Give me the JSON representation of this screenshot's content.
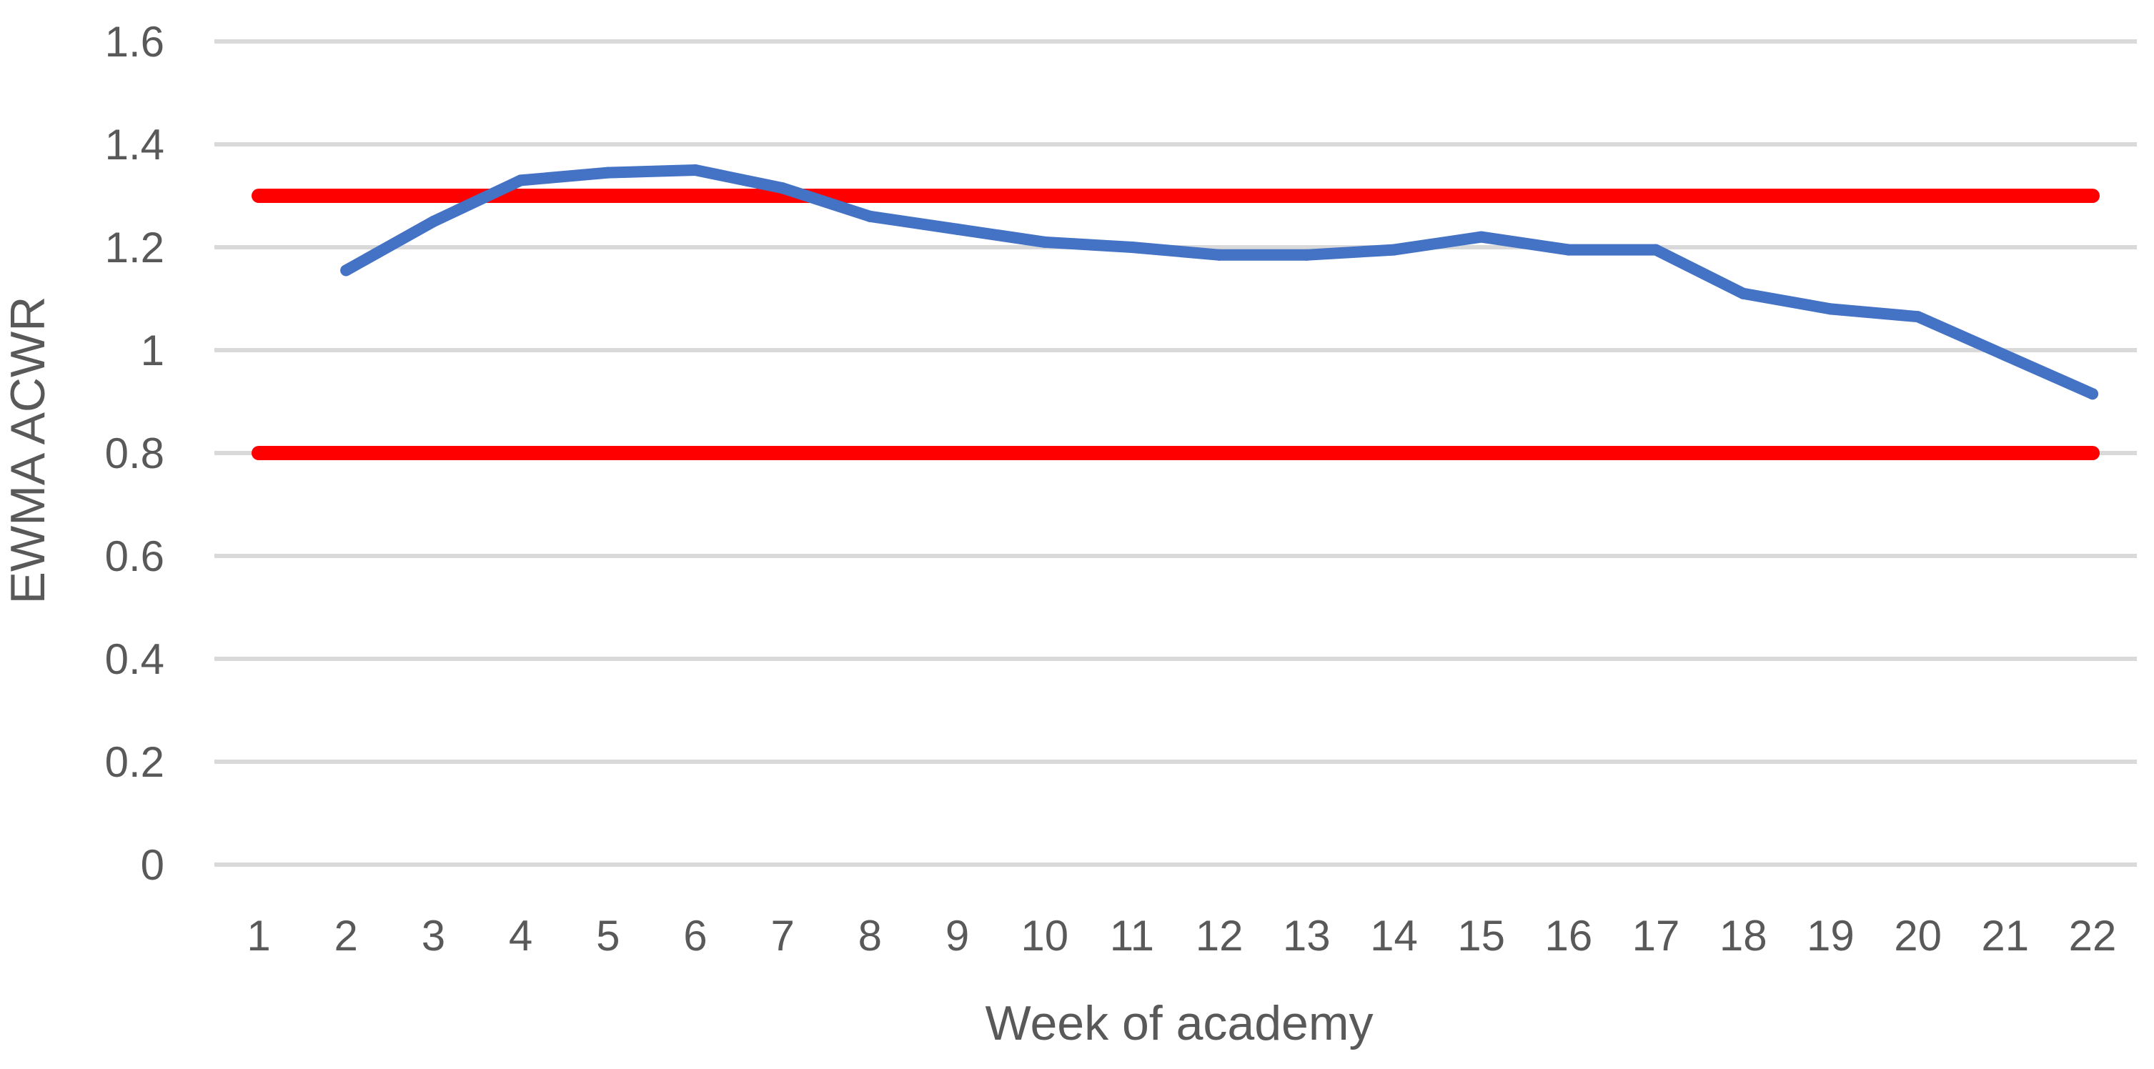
{
  "chart_data": {
    "type": "line",
    "title": "",
    "xlabel": "Week of academy",
    "ylabel": "EWMA ACWR",
    "categories": [
      "1",
      "2",
      "3",
      "4",
      "5",
      "6",
      "7",
      "8",
      "9",
      "10",
      "11",
      "12",
      "13",
      "14",
      "15",
      "16",
      "17",
      "18",
      "19",
      "20",
      "21",
      "22"
    ],
    "ylim": [
      0,
      1.6
    ],
    "yticks": [
      "0",
      "0.2",
      "0.4",
      "0.6",
      "0.8",
      "1",
      "1.2",
      "1.4",
      "1.6"
    ],
    "grid": true,
    "legend": "none",
    "series": [
      {
        "values": [
          null,
          1.155,
          1.25,
          1.33,
          1.345,
          1.35,
          1.315,
          1.26,
          1.235,
          1.21,
          1.2,
          1.185,
          1.185,
          1.195,
          1.22,
          1.195,
          1.195,
          1.11,
          1.08,
          1.065,
          0.99,
          0.915
        ],
        "color": "#4472C4"
      }
    ],
    "reference_lines": [
      {
        "y": 1.3,
        "color": "#FF0000"
      },
      {
        "y": 0.8,
        "color": "#FF0000"
      }
    ],
    "colors": {
      "grid": "#D9D9D9",
      "text": "#595959"
    }
  }
}
